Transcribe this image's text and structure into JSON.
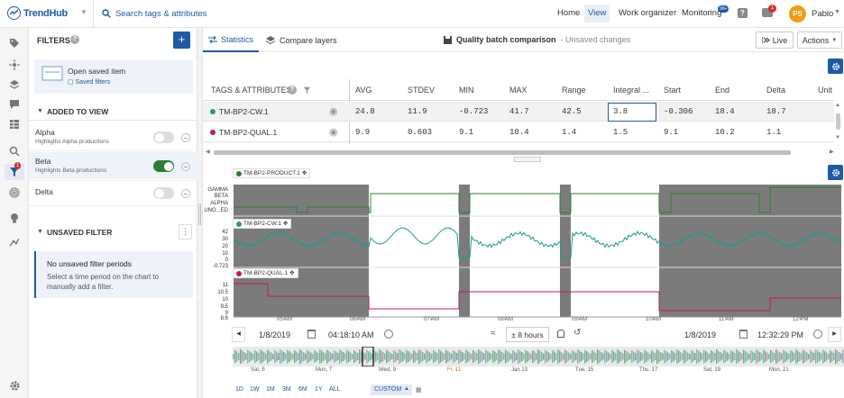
{
  "header": {
    "logo_text": "TrendHub",
    "search_placeholder": "Search tags & attributes",
    "nav": [
      "Home",
      "View",
      "Work organizer",
      "Monitoring"
    ],
    "monitoring_badge": "99+",
    "notif_count": "1",
    "user_initials": "PS",
    "user_name": "Pablo"
  },
  "sidebar": {
    "filter_badge": "1"
  },
  "filters": {
    "title": "FILTERS",
    "open_saved": "Open saved item",
    "saved_filters": "Saved filters",
    "added_title": "ADDED TO VIEW",
    "items": [
      {
        "name": "Alpha",
        "desc": "Highligths Alpha productions",
        "on": false
      },
      {
        "name": "Beta",
        "desc": "Highlights Beta productions",
        "on": true
      },
      {
        "name": "Delta",
        "desc": "",
        "on": false
      }
    ],
    "unsaved_title": "UNSAVED FILTER",
    "no_unsaved_title": "No unsaved filter periods",
    "no_unsaved_text": "Select a time period on the chart to manually add a filter."
  },
  "tabs": {
    "statistics": "Statistics",
    "compare": "Compare layers"
  },
  "doc": {
    "title": "Quality batch comparison",
    "status": "- Unsaved changes"
  },
  "buttons": {
    "live": "Live",
    "actions": "Actions"
  },
  "table": {
    "headers": [
      "TAGS & ATTRIBUTES",
      "AVG",
      "STDEV",
      "MIN",
      "MAX",
      "Range",
      "Integral ...",
      "Start",
      "End",
      "Delta",
      "Unit"
    ],
    "rows": [
      {
        "tag": "TM-BP2-CW.1",
        "color": "#1a9a8e",
        "values": [
          "24.8",
          "11.9",
          "-0.723",
          "41.7",
          "42.5",
          "3.8",
          "-0.306",
          "18.4",
          "18.7"
        ]
      },
      {
        "tag": "TM-BP2-QUAL.1",
        "color": "#c2185b",
        "values": [
          "9.9",
          "0.603",
          "9.1",
          "10.4",
          "1.4",
          "1.5",
          "9.1",
          "10.2",
          "1.1"
        ]
      }
    ]
  },
  "chart": {
    "lanes": [
      {
        "label": "TM-BP2-PRODUCT.1",
        "color": "#2e7d32",
        "ticks": [
          "GAMMA",
          "BETA",
          "ALPHA",
          "UNO...ED"
        ]
      },
      {
        "label": "TM-BP2-CW.1",
        "color": "#1a9a8e",
        "ticks": [
          "42",
          "30",
          "20",
          "10",
          "0",
          "-0.723"
        ]
      },
      {
        "label": "TM-BP2-QUAL.1",
        "color": "#c2185b",
        "ticks": [
          "11",
          "10.5",
          "10",
          "9.5",
          "9",
          "8.6"
        ]
      }
    ],
    "x_ticks": [
      "05 AM",
      "06 AM",
      "07 AM",
      "08 AM",
      "09 AM",
      "10 AM",
      "11 AM",
      "12 PM"
    ]
  },
  "timebar": {
    "start_date": "1/8/2019",
    "start_time": "04:18:10 AM",
    "span": "± 8 hours",
    "end_date": "1/8/2019",
    "end_time": "12:32:29 PM"
  },
  "overview": {
    "dates": [
      "Sat, 5",
      "Mon, 7",
      "Wed, 9",
      "Fr, 11",
      "Jan 13",
      "Tue, 15",
      "Thu, 17",
      "Sat, 19",
      "Mon, 21"
    ]
  },
  "ranges": [
    "1D",
    "1W",
    "1M",
    "3M",
    "6M",
    "1Y",
    "ALL",
    "CUSTOM"
  ]
}
